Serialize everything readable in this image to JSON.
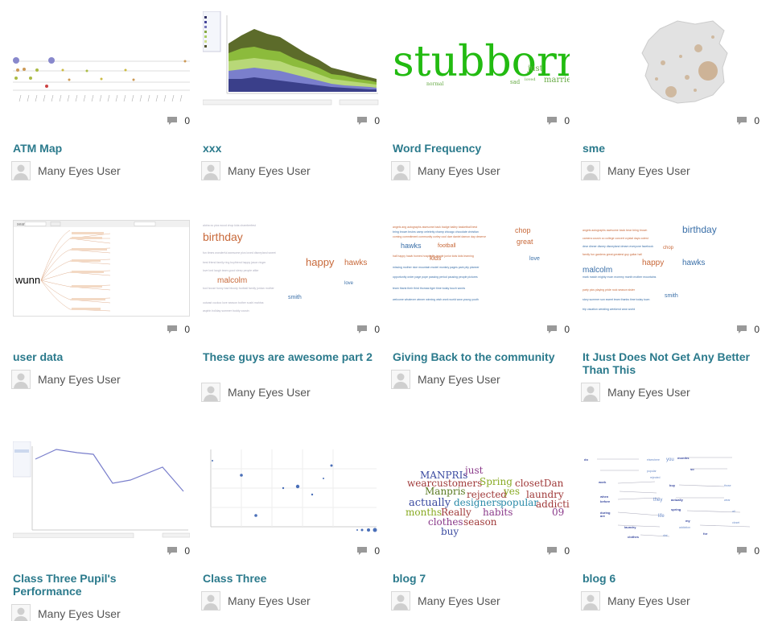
{
  "cards": [
    {
      "title": "ATM Map",
      "comments": "0",
      "user": "Many Eyes User"
    },
    {
      "title": "xxx",
      "comments": "0",
      "user": "Many Eyes User"
    },
    {
      "title": "Word Frequency",
      "comments": "0",
      "user": "Many Eyes User"
    },
    {
      "title": "sme",
      "comments": "0",
      "user": "Many Eyes User"
    },
    {
      "title": "user data",
      "comments": "0",
      "user": "Many Eyes User"
    },
    {
      "title": "These guys are awesome part 2",
      "comments": "0",
      "user": "Many Eyes User"
    },
    {
      "title": "Giving Back to the community",
      "comments": "0",
      "user": "Many Eyes User"
    },
    {
      "title": "It Just Does Not Get Any Better Than This",
      "comments": "0",
      "user": "Many Eyes User"
    },
    {
      "title": "Class Three Pupil's Performance",
      "comments": "0",
      "user": "Many Eyes User"
    },
    {
      "title": "Class Three",
      "comments": "0",
      "user": "Many Eyes User"
    },
    {
      "title": "blog 7",
      "comments": "0",
      "user": "Many Eyes User"
    },
    {
      "title": "blog 6",
      "comments": "0",
      "user": "Many Eyes User"
    }
  ],
  "thumb_text": {
    "word_frequency": {
      "big": "stubborn",
      "w1": "just",
      "w2": "normal",
      "w3": "sad",
      "w4": "married",
      "w5": "loved"
    },
    "user_data": {
      "big": "wunn",
      "search": "search"
    },
    "awesome": {
      "w1": "birthday",
      "w2": "happy",
      "w3": "hawks",
      "w4": "malcolm",
      "w5": "smith",
      "w6": "love"
    },
    "community": {
      "w1": "hawks",
      "w2": "football",
      "w3": "chop",
      "w4": "kids",
      "w5": "great",
      "w6": "love"
    },
    "better": {
      "w1": "birthday",
      "w2": "happy",
      "w3": "hawks",
      "w4": "malcolm",
      "w5": "smith",
      "w6": "chop"
    },
    "blog7": {
      "w1": "MANPRIs",
      "w2": "just",
      "w3": "wearcustomers",
      "w4": "Spring",
      "w5": "closetDan",
      "w6": "Manpris",
      "w7": "rejected",
      "w8": "yes",
      "w9": "laundry",
      "w10": "actually",
      "w11": "designers",
      "w12": "popular",
      "w13": "addiction",
      "w14": "months",
      "w15": "Really",
      "w16": "habits",
      "w17": "09",
      "w18": "clothes",
      "w19": "season",
      "w20": "buy"
    },
    "blog6": {
      "w1": "you",
      "w2": "months",
      "w3": "work",
      "w4": "buy",
      "w5": "they",
      "w6": "actually",
      "w7": "spring",
      "w8": "life",
      "w9": "my",
      "w10": "laundry",
      "w11": "clothes",
      "w12": "for"
    }
  },
  "colors": {
    "title": "#2b7a8c",
    "green_word": "#22bb11",
    "orange_word": "#c8693a",
    "blue_word": "#3a6fa8"
  }
}
